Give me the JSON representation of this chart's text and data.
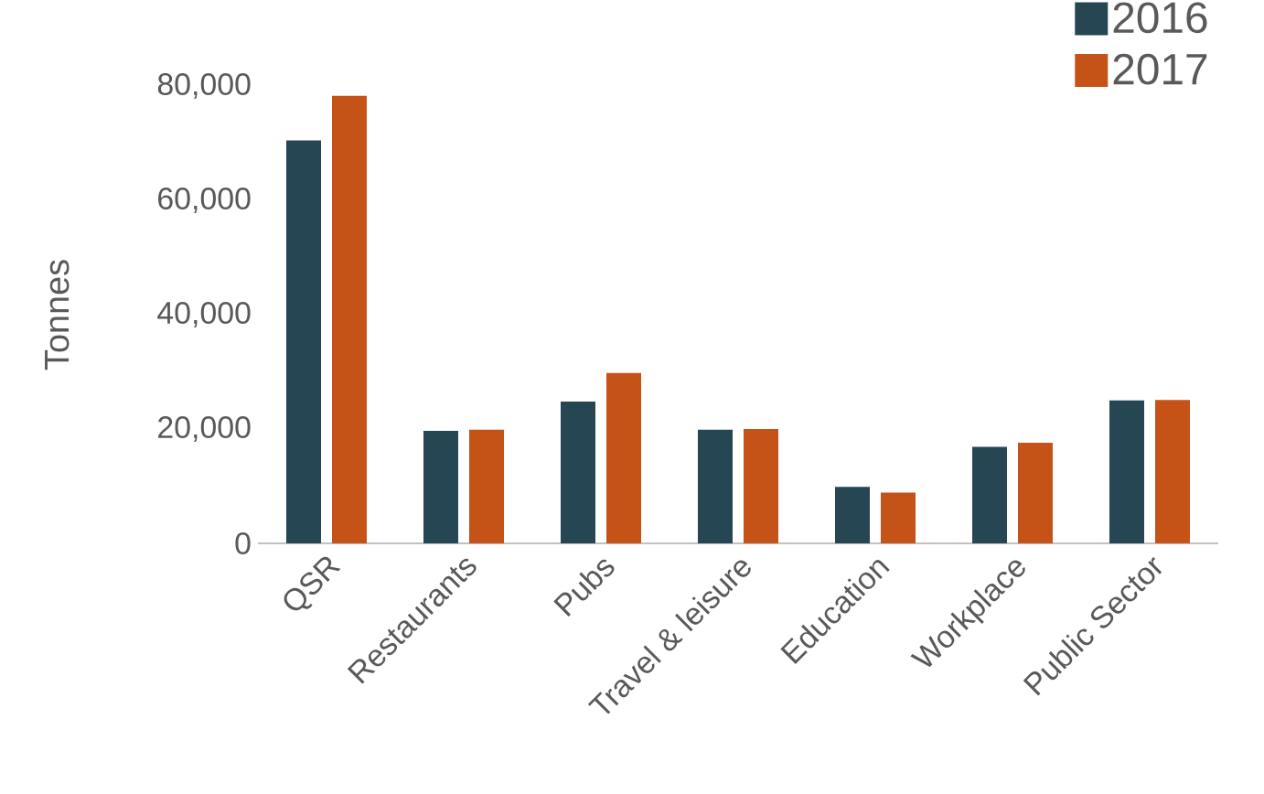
{
  "chart_data": {
    "type": "bar",
    "ylabel": "Tonnes",
    "categories": [
      "QSR",
      "Restaurants",
      "Pubs",
      "Travel & leisure",
      "Education",
      "Workplace",
      "Public Sector"
    ],
    "series": [
      {
        "name": "2016",
        "color": "#264653",
        "values": [
          70500,
          19700,
          24800,
          19900,
          9900,
          16900,
          25000
        ]
      },
      {
        "name": "2017",
        "color": "#c55216",
        "values": [
          78300,
          19900,
          29800,
          20000,
          8900,
          17600,
          25100
        ]
      }
    ],
    "ylim": [
      0,
      80000
    ],
    "yticks": [
      {
        "value": 0,
        "label": "0"
      },
      {
        "value": 20000,
        "label": "20,000"
      },
      {
        "value": 40000,
        "label": "40,000"
      },
      {
        "value": 60000,
        "label": "60,000"
      },
      {
        "value": 80000,
        "label": "80,000"
      }
    ],
    "legend": "top right"
  }
}
